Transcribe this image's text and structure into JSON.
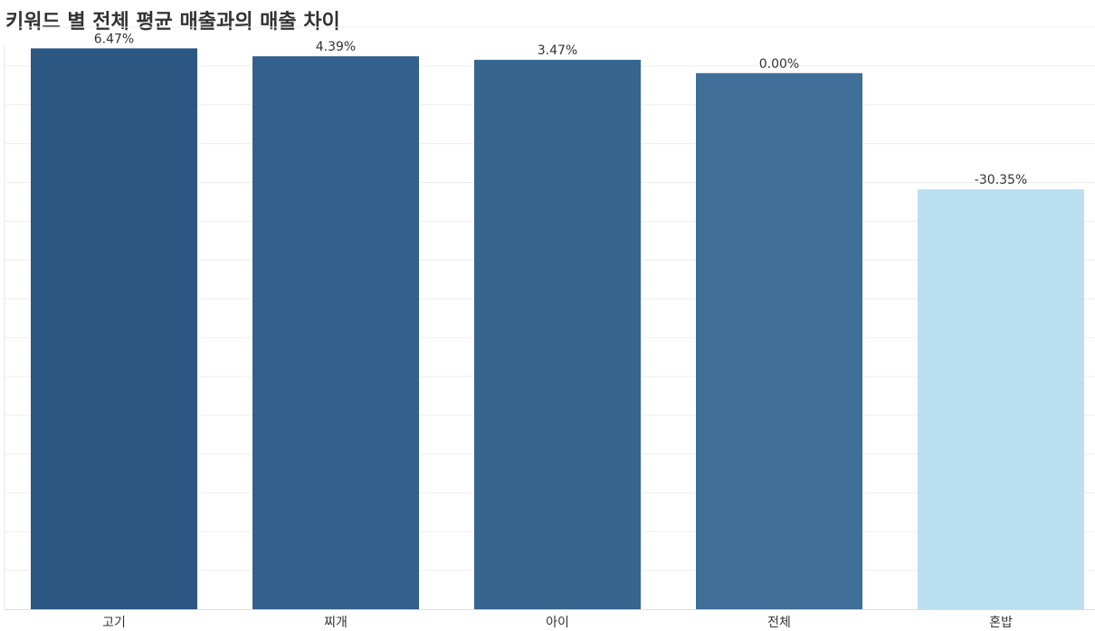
{
  "chart_data": {
    "type": "bar",
    "title": "키워드 별 전체 평균 매출과의 매출 차이",
    "xlabel": "",
    "ylabel": "",
    "categories": [
      "고기",
      "찌개",
      "아이",
      "전체",
      "혼밥"
    ],
    "values": [
      6.47,
      4.39,
      3.47,
      0.0,
      -30.35
    ],
    "data_labels": [
      "6.47%",
      "4.39%",
      "3.47%",
      "0.00%",
      "-30.35%"
    ],
    "ylim": [
      -140,
      12
    ],
    "grid": true,
    "colors": [
      "#2c5783",
      "#33608c",
      "#366590",
      "#3f6e98",
      "#badff0"
    ]
  }
}
